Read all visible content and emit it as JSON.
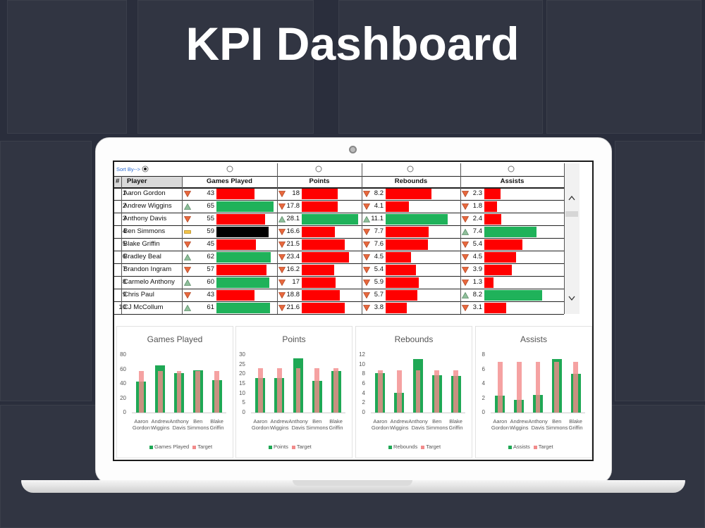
{
  "header": {
    "title": "KPI Dashboard"
  },
  "table": {
    "sort_label": "Sort By-->",
    "columns": [
      "#",
      "Player",
      "Games Played",
      "Points",
      "Rebounds",
      "Assists"
    ],
    "rows": [
      {
        "rank": 1,
        "player": "Aaron Gordon",
        "cells": [
          {
            "value": 43,
            "status": "down",
            "color": "#ff0000"
          },
          {
            "value": 18,
            "status": "down",
            "color": "#ff0000"
          },
          {
            "value": 8.2,
            "status": "down",
            "color": "#ff0000"
          },
          {
            "value": 2.3,
            "status": "down",
            "color": "#ff0000"
          }
        ]
      },
      {
        "rank": 2,
        "player": "Andrew Wiggins",
        "cells": [
          {
            "value": 65,
            "status": "up",
            "color": "#1fb25a"
          },
          {
            "value": 17.8,
            "status": "down",
            "color": "#ff0000"
          },
          {
            "value": 4.1,
            "status": "down",
            "color": "#ff0000"
          },
          {
            "value": 1.8,
            "status": "down",
            "color": "#ff0000"
          }
        ]
      },
      {
        "rank": 3,
        "player": "Anthony Davis",
        "cells": [
          {
            "value": 55,
            "status": "down",
            "color": "#ff0000"
          },
          {
            "value": 28.1,
            "status": "up",
            "color": "#1fb25a"
          },
          {
            "value": 11.1,
            "status": "up",
            "color": "#1fb25a"
          },
          {
            "value": 2.4,
            "status": "down",
            "color": "#ff0000"
          }
        ]
      },
      {
        "rank": 4,
        "player": "Ben Simmons",
        "cells": [
          {
            "value": 59,
            "status": "flat",
            "color": "#000000"
          },
          {
            "value": 16.6,
            "status": "down",
            "color": "#ff0000"
          },
          {
            "value": 7.7,
            "status": "down",
            "color": "#ff0000"
          },
          {
            "value": 7.4,
            "status": "up",
            "color": "#1fb25a"
          }
        ]
      },
      {
        "rank": 5,
        "player": "Blake Griffin",
        "cells": [
          {
            "value": 45,
            "status": "down",
            "color": "#ff0000"
          },
          {
            "value": 21.5,
            "status": "down",
            "color": "#ff0000"
          },
          {
            "value": 7.6,
            "status": "down",
            "color": "#ff0000"
          },
          {
            "value": 5.4,
            "status": "down",
            "color": "#ff0000"
          }
        ]
      },
      {
        "rank": 6,
        "player": "Bradley Beal",
        "cells": [
          {
            "value": 62,
            "status": "up",
            "color": "#1fb25a"
          },
          {
            "value": 23.4,
            "status": "down",
            "color": "#ff0000"
          },
          {
            "value": 4.5,
            "status": "down",
            "color": "#ff0000"
          },
          {
            "value": 4.5,
            "status": "down",
            "color": "#ff0000"
          }
        ]
      },
      {
        "rank": 7,
        "player": "Brandon Ingram",
        "cells": [
          {
            "value": 57,
            "status": "down",
            "color": "#ff0000"
          },
          {
            "value": 16.2,
            "status": "down",
            "color": "#ff0000"
          },
          {
            "value": 5.4,
            "status": "down",
            "color": "#ff0000"
          },
          {
            "value": 3.9,
            "status": "down",
            "color": "#ff0000"
          }
        ]
      },
      {
        "rank": 8,
        "player": "Carmelo Anthony",
        "cells": [
          {
            "value": 60,
            "status": "up",
            "color": "#1fb25a"
          },
          {
            "value": 17,
            "status": "down",
            "color": "#ff0000"
          },
          {
            "value": 5.9,
            "status": "down",
            "color": "#ff0000"
          },
          {
            "value": 1.3,
            "status": "down",
            "color": "#ff0000"
          }
        ]
      },
      {
        "rank": 9,
        "player": "Chris Paul",
        "cells": [
          {
            "value": 43,
            "status": "down",
            "color": "#ff0000"
          },
          {
            "value": 18.8,
            "status": "down",
            "color": "#ff0000"
          },
          {
            "value": 5.7,
            "status": "down",
            "color": "#ff0000"
          },
          {
            "value": 8.2,
            "status": "up",
            "color": "#1fb25a"
          }
        ]
      },
      {
        "rank": 10,
        "player": "CJ McCollum",
        "cells": [
          {
            "value": 61,
            "status": "up",
            "color": "#1fb25a"
          },
          {
            "value": 21.6,
            "status": "down",
            "color": "#ff0000"
          },
          {
            "value": 3.8,
            "status": "down",
            "color": "#ff0000"
          },
          {
            "value": 3.1,
            "status": "down",
            "color": "#ff0000"
          }
        ]
      }
    ]
  },
  "chart_data": [
    {
      "type": "bar",
      "title": "Games Played",
      "categories": [
        "Aaron Gordon",
        "Andrew Wiggins",
        "Anthony Davis",
        "Ben Simmons",
        "Blake Griffin"
      ],
      "series": [
        {
          "name": "Games Played",
          "color": "#1fa855",
          "values": [
            43,
            65,
            55,
            59,
            45
          ]
        },
        {
          "name": "Target",
          "color": "#f28b8b",
          "values": [
            58,
            58,
            58,
            58,
            58
          ]
        }
      ],
      "ylim": [
        0,
        80
      ],
      "yticks": [
        0,
        20,
        40,
        60,
        80
      ]
    },
    {
      "type": "bar",
      "title": "Points",
      "categories": [
        "Aaron Gordon",
        "Andrew Wiggins",
        "Anthony Davis",
        "Ben Simmons",
        "Blake Griffin"
      ],
      "series": [
        {
          "name": "Points",
          "color": "#1fa855",
          "values": [
            18,
            17.8,
            28.1,
            16.6,
            21.5
          ]
        },
        {
          "name": "Target",
          "color": "#f28b8b",
          "values": [
            23,
            23,
            23,
            23,
            23
          ]
        }
      ],
      "ylim": [
        0,
        30
      ],
      "yticks": [
        0,
        5,
        10,
        15,
        20,
        25,
        30
      ]
    },
    {
      "type": "bar",
      "title": "Rebounds",
      "categories": [
        "Aaron Gordon",
        "Andrew Wiggins",
        "Anthony Davis",
        "Ben Simmons",
        "Blake Griffin"
      ],
      "series": [
        {
          "name": "Rebounds",
          "color": "#1fa855",
          "values": [
            8.2,
            4.1,
            11.1,
            7.7,
            7.6
          ]
        },
        {
          "name": "Target",
          "color": "#f28b8b",
          "values": [
            8.8,
            8.8,
            8.8,
            8.8,
            8.8
          ]
        }
      ],
      "ylim": [
        0,
        12
      ],
      "yticks": [
        0,
        2,
        4,
        6,
        8,
        10,
        12
      ]
    },
    {
      "type": "bar",
      "title": "Assists",
      "categories": [
        "Aaron Gordon",
        "Andrew Wiggins",
        "Anthony Davis",
        "Ben Simmons",
        "Blake Griffin"
      ],
      "series": [
        {
          "name": "Assists",
          "color": "#1fa855",
          "values": [
            2.3,
            1.8,
            2.4,
            7.4,
            5.4
          ]
        },
        {
          "name": "Target",
          "color": "#f28b8b",
          "values": [
            7,
            7,
            7,
            7,
            7
          ]
        }
      ],
      "ylim": [
        0,
        8
      ],
      "yticks": [
        0,
        2,
        4,
        6,
        8
      ]
    }
  ]
}
